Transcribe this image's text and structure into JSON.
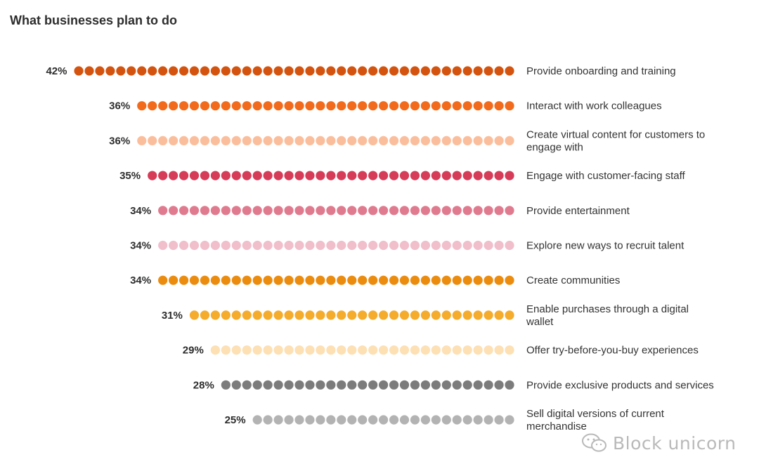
{
  "title": "What businesses plan to do",
  "watermark": "Block unicorn",
  "chart_data": {
    "type": "dot-bar",
    "title": "What businesses plan to do",
    "unit": "%",
    "xlim": [
      0,
      42
    ],
    "categories": [
      "Provide onboarding and training",
      "Interact with work colleagues",
      "Create virtual content for customers to engage with",
      "Engage with customer-facing staff",
      "Provide entertainment",
      "Explore new ways to recruit talent",
      "Create communities",
      "Enable purchases through a digital wallet",
      "Offer try-before-you-buy experiences",
      "Provide exclusive products and services",
      "Sell digital versions of current merchandise"
    ],
    "label_lines": [
      [
        "Provide onboarding and training"
      ],
      [
        "Interact with work colleagues"
      ],
      [
        "Create virtual content for customers to",
        "engage with"
      ],
      [
        "Engage with customer-facing staff"
      ],
      [
        "Provide entertainment"
      ],
      [
        "Explore new ways to recruit talent"
      ],
      [
        "Create communities"
      ],
      [
        "Enable purchases through a digital",
        "wallet"
      ],
      [
        "Offer try-before-you-buy experiences"
      ],
      [
        "Provide exclusive products and services"
      ],
      [
        "Sell digital versions of current",
        "merchandise"
      ]
    ],
    "values": [
      42,
      36,
      36,
      35,
      34,
      34,
      34,
      31,
      29,
      28,
      25
    ],
    "value_labels": [
      "42%",
      "36%",
      "36%",
      "35%",
      "34%",
      "34%",
      "34%",
      "31%",
      "29%",
      "28%",
      "25%"
    ],
    "colors": [
      "#d4540f",
      "#f26b1d",
      "#fbbe9c",
      "#d63b57",
      "#e07b8f",
      "#f1bfcb",
      "#eb8c0f",
      "#f5ab2c",
      "#fde0b4",
      "#7c7c7c",
      "#b3b3b3"
    ]
  }
}
